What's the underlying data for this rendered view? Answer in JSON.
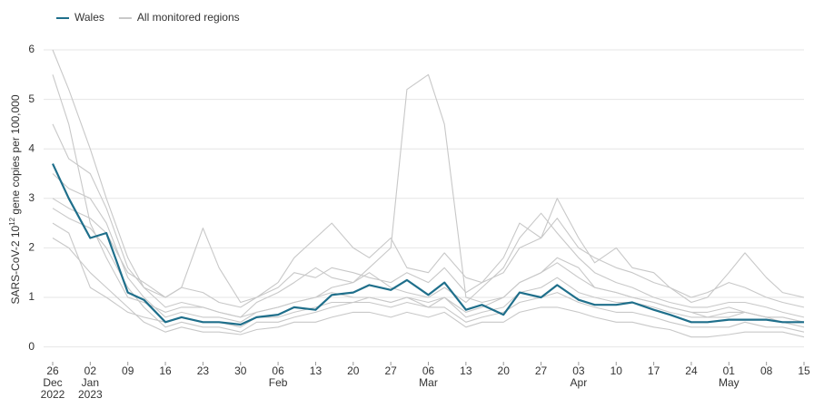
{
  "chart_data": {
    "type": "line",
    "ylabel": {
      "text": "SARS-CoV-2 10",
      "superscript": "12",
      "text_end": " gene copies per 100,000"
    },
    "x": [
      "2022-12-26",
      "2022-12-29",
      "2023-01-02",
      "2023-01-05",
      "2023-01-09",
      "2023-01-12",
      "2023-01-16",
      "2023-01-19",
      "2023-01-23",
      "2023-01-26",
      "2023-01-30",
      "2023-02-02",
      "2023-02-06",
      "2023-02-09",
      "2023-02-13",
      "2023-02-16",
      "2023-02-20",
      "2023-02-23",
      "2023-02-27",
      "2023-03-02",
      "2023-03-06",
      "2023-03-09",
      "2023-03-13",
      "2023-03-16",
      "2023-03-20",
      "2023-03-23",
      "2023-03-27",
      "2023-03-30",
      "2023-04-03",
      "2023-04-06",
      "2023-04-10",
      "2023-04-13",
      "2023-04-17",
      "2023-04-20",
      "2023-04-24",
      "2023-04-27",
      "2023-05-01",
      "2023-05-04",
      "2023-05-08",
      "2023-05-11",
      "2023-05-15"
    ],
    "xlim": [
      "2022-12-26",
      "2023-05-15"
    ],
    "xticks": [
      {
        "value": "2022-12-26",
        "label": [
          "26",
          "Dec",
          "2022"
        ]
      },
      {
        "value": "2023-01-02",
        "label": [
          "02",
          "Jan",
          "2023"
        ]
      },
      {
        "value": "2023-01-09",
        "label": [
          "09"
        ]
      },
      {
        "value": "2023-01-16",
        "label": [
          "16"
        ]
      },
      {
        "value": "2023-01-23",
        "label": [
          "23"
        ]
      },
      {
        "value": "2023-01-30",
        "label": [
          "30"
        ]
      },
      {
        "value": "2023-02-06",
        "label": [
          "06",
          "Feb"
        ]
      },
      {
        "value": "2023-02-13",
        "label": [
          "13"
        ]
      },
      {
        "value": "2023-02-20",
        "label": [
          "20"
        ]
      },
      {
        "value": "2023-02-27",
        "label": [
          "27"
        ]
      },
      {
        "value": "2023-03-06",
        "label": [
          "06",
          "Mar"
        ]
      },
      {
        "value": "2023-03-13",
        "label": [
          "13"
        ]
      },
      {
        "value": "2023-03-20",
        "label": [
          "20"
        ]
      },
      {
        "value": "2023-03-27",
        "label": [
          "27"
        ]
      },
      {
        "value": "2023-04-03",
        "label": [
          "03",
          "Apr"
        ]
      },
      {
        "value": "2023-04-10",
        "label": [
          "10"
        ]
      },
      {
        "value": "2023-04-17",
        "label": [
          "17"
        ]
      },
      {
        "value": "2023-04-24",
        "label": [
          "24"
        ]
      },
      {
        "value": "2023-05-01",
        "label": [
          "01",
          "May"
        ]
      },
      {
        "value": "2023-05-08",
        "label": [
          "08"
        ]
      },
      {
        "value": "2023-05-15",
        "label": [
          "15"
        ]
      }
    ],
    "ylim": [
      -0.3,
      6
    ],
    "yticks": [
      0,
      1,
      2,
      3,
      4,
      5,
      6
    ],
    "grid": true,
    "series": [
      {
        "name": "Wales",
        "color": "#1f6f8b",
        "values": [
          3.7,
          3.0,
          2.2,
          2.3,
          1.1,
          0.95,
          0.5,
          0.6,
          0.5,
          0.5,
          0.45,
          0.6,
          0.65,
          0.8,
          0.75,
          1.05,
          1.1,
          1.25,
          1.15,
          1.35,
          1.05,
          1.3,
          0.75,
          0.85,
          0.65,
          1.1,
          1.0,
          1.25,
          0.95,
          0.85,
          0.85,
          0.9,
          0.75,
          0.65,
          0.5,
          0.5,
          0.55,
          0.55,
          0.55,
          0.5,
          0.5
        ]
      },
      {
        "name": "All monitored regions",
        "color": "#c8c8c8",
        "values": [
          5.5,
          4.5,
          2.5,
          1.8,
          1.0,
          0.9,
          0.7,
          0.8,
          0.8,
          0.7,
          0.6,
          0.7,
          0.8,
          0.9,
          1.0,
          1.2,
          1.3,
          1.6,
          2.0,
          5.2,
          5.5,
          4.5,
          1.0,
          0.9,
          1.0,
          1.3,
          1.5,
          1.8,
          1.6,
          1.2,
          1.1,
          1.0,
          0.9,
          0.8,
          0.7,
          0.7,
          0.8,
          0.7,
          0.6,
          0.6,
          0.5
        ]
      },
      {
        "name": "All monitored regions",
        "color": "#c8c8c8",
        "values": [
          6.0,
          5.2,
          4.0,
          3.0,
          1.8,
          1.2,
          1.0,
          1.2,
          2.4,
          1.6,
          0.9,
          1.0,
          1.3,
          1.8,
          2.2,
          2.5,
          2.0,
          1.8,
          2.2,
          1.6,
          1.5,
          1.9,
          1.4,
          1.3,
          1.8,
          2.5,
          2.2,
          3.0,
          2.2,
          1.7,
          2.0,
          1.6,
          1.5,
          1.2,
          0.9,
          1.0,
          1.5,
          1.9,
          1.4,
          1.1,
          1.0
        ]
      },
      {
        "name": "All monitored regions",
        "color": "#c8c8c8",
        "values": [
          4.5,
          3.8,
          3.5,
          2.8,
          1.6,
          1.2,
          0.8,
          0.9,
          0.8,
          0.7,
          0.6,
          0.9,
          1.1,
          1.3,
          1.6,
          1.4,
          1.3,
          1.5,
          1.2,
          1.1,
          1.0,
          1.2,
          0.9,
          1.2,
          1.6,
          2.2,
          2.7,
          2.3,
          1.8,
          1.5,
          1.3,
          1.2,
          1.0,
          0.9,
          0.8,
          0.8,
          0.9,
          0.9,
          0.8,
          0.7,
          0.6
        ]
      },
      {
        "name": "All monitored regions",
        "color": "#c8c8c8",
        "values": [
          3.5,
          3.2,
          3.0,
          2.5,
          1.4,
          1.0,
          0.6,
          0.7,
          0.6,
          0.6,
          0.5,
          0.7,
          0.8,
          0.9,
          1.0,
          1.1,
          1.0,
          1.0,
          0.9,
          1.0,
          0.9,
          1.0,
          0.7,
          0.8,
          1.0,
          1.3,
          1.5,
          1.7,
          1.4,
          1.2,
          1.1,
          1.0,
          0.9,
          0.8,
          0.7,
          0.6,
          0.6,
          0.7,
          0.6,
          0.5,
          0.4
        ]
      },
      {
        "name": "All monitored regions",
        "color": "#c8c8c8",
        "values": [
          2.8,
          2.6,
          2.4,
          2.0,
          1.2,
          0.8,
          0.4,
          0.5,
          0.4,
          0.4,
          0.3,
          0.5,
          0.5,
          0.6,
          0.7,
          0.8,
          0.9,
          0.9,
          0.8,
          0.9,
          0.8,
          0.8,
          0.5,
          0.6,
          0.7,
          0.9,
          1.0,
          1.1,
          0.9,
          0.8,
          0.7,
          0.7,
          0.6,
          0.5,
          0.4,
          0.4,
          0.4,
          0.5,
          0.4,
          0.4,
          0.3
        ]
      },
      {
        "name": "All monitored regions",
        "color": "#c8c8c8",
        "values": [
          2.2,
          2.0,
          1.5,
          1.2,
          0.8,
          0.5,
          0.3,
          0.4,
          0.3,
          0.3,
          0.25,
          0.35,
          0.4,
          0.5,
          0.5,
          0.6,
          0.7,
          0.7,
          0.6,
          0.7,
          0.6,
          0.7,
          0.4,
          0.5,
          0.5,
          0.7,
          0.8,
          0.8,
          0.7,
          0.6,
          0.5,
          0.5,
          0.4,
          0.35,
          0.2,
          0.2,
          0.25,
          0.3,
          0.3,
          0.3,
          0.2
        ]
      },
      {
        "name": "All monitored regions",
        "color": "#c8c8c8",
        "values": [
          3.0,
          2.8,
          2.6,
          2.3,
          1.5,
          1.3,
          1.0,
          1.2,
          1.1,
          0.9,
          0.8,
          1.0,
          1.2,
          1.5,
          1.4,
          1.6,
          1.5,
          1.4,
          1.3,
          1.5,
          1.3,
          1.6,
          1.1,
          1.3,
          1.5,
          2.0,
          2.2,
          2.6,
          2.0,
          1.8,
          1.6,
          1.5,
          1.3,
          1.2,
          1.0,
          1.1,
          1.3,
          1.2,
          1.0,
          0.9,
          0.8
        ]
      },
      {
        "name": "All monitored regions",
        "color": "#c8c8c8",
        "values": [
          2.5,
          2.3,
          1.2,
          1.0,
          0.7,
          0.6,
          0.5,
          0.6,
          0.5,
          0.5,
          0.4,
          0.6,
          0.6,
          0.7,
          0.8,
          0.9,
          0.9,
          1.0,
          0.9,
          1.0,
          0.8,
          1.0,
          0.6,
          0.7,
          0.8,
          1.1,
          1.2,
          1.4,
          1.1,
          1.0,
          0.9,
          0.9,
          0.8,
          0.7,
          0.6,
          0.6,
          0.7,
          0.7,
          0.6,
          0.6,
          0.5
        ]
      }
    ]
  }
}
